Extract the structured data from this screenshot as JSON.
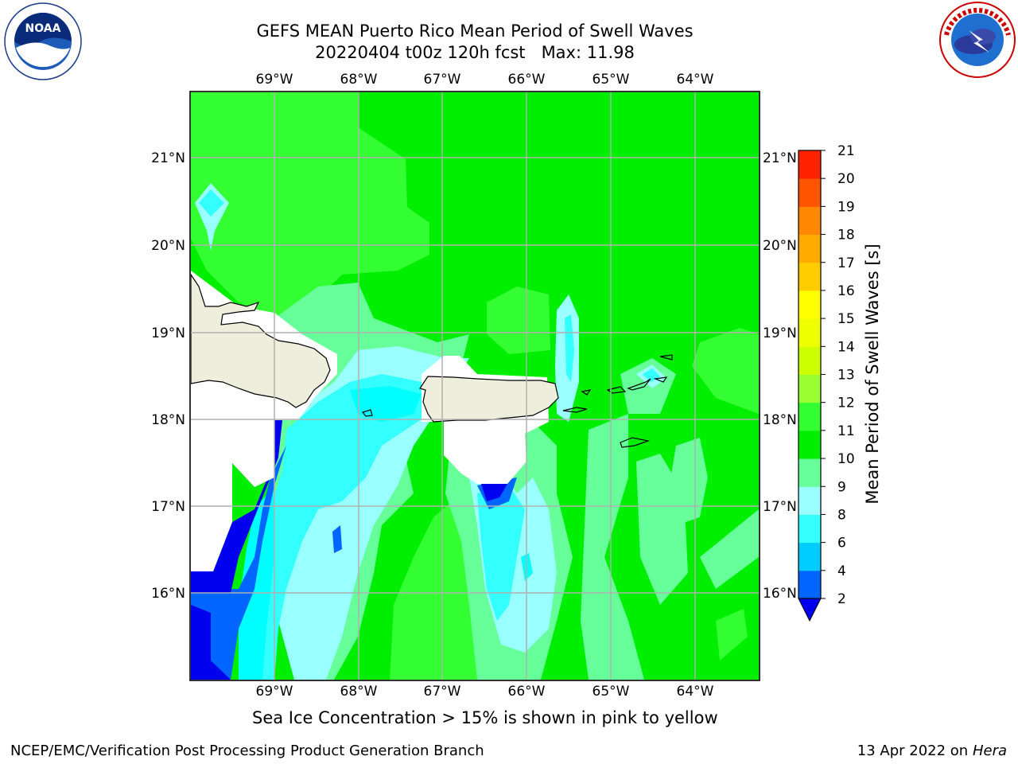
{
  "title_line1": "GEFS MEAN Puerto Rico Mean Period of Swell Waves",
  "title_line2": "20220404 t00z 120h fcst   Max: 11.98",
  "caption": "Sea Ice Concentration > 15% is shown in pink to yellow",
  "footer_left": "NCEP/EMC/Verification Post Processing Product Generation Branch",
  "footer_date": "13 Apr 2022 on ",
  "footer_machine": "Hera",
  "logos": {
    "noaa_text": "NOAA",
    "noaa_ring": "NATIONAL OCEANIC AND ATMOSPHERIC ADMINISTRATION · U.S. DEPARTMENT OF COMMERCE",
    "nws_ring": "NATIONAL WEATHER SERVICE"
  },
  "map": {
    "lon_labels": [
      "69°W",
      "68°W",
      "67°W",
      "66°W",
      "65°W",
      "64°W"
    ],
    "lat_labels": [
      "21°N",
      "20°N",
      "19°N",
      "18°N",
      "17°N",
      "16°N"
    ],
    "colors": {
      "ocean_base": "#00ee00",
      "land": "#eeeedd",
      "nodata": "#ffffff",
      "grid": "#b0b0b0"
    }
  },
  "colorbar": {
    "label": "Mean Period of Swell Waves [s]",
    "ticks": [
      "2",
      "4",
      "6",
      "8",
      "9",
      "10",
      "11",
      "12",
      "13",
      "14",
      "15",
      "16",
      "17",
      "18",
      "19",
      "20",
      "21"
    ],
    "colors": [
      "#0066ff",
      "#00ccff",
      "#33ffff",
      "#99ffff",
      "#66ff99",
      "#00ee00",
      "#33ff33",
      "#99ff33",
      "#ccff00",
      "#eeff00",
      "#ffff00",
      "#ffcc00",
      "#ffaa00",
      "#ff8800",
      "#ff5500",
      "#ff2200",
      "#ff0000"
    ],
    "under_color": "#0000ee"
  }
}
